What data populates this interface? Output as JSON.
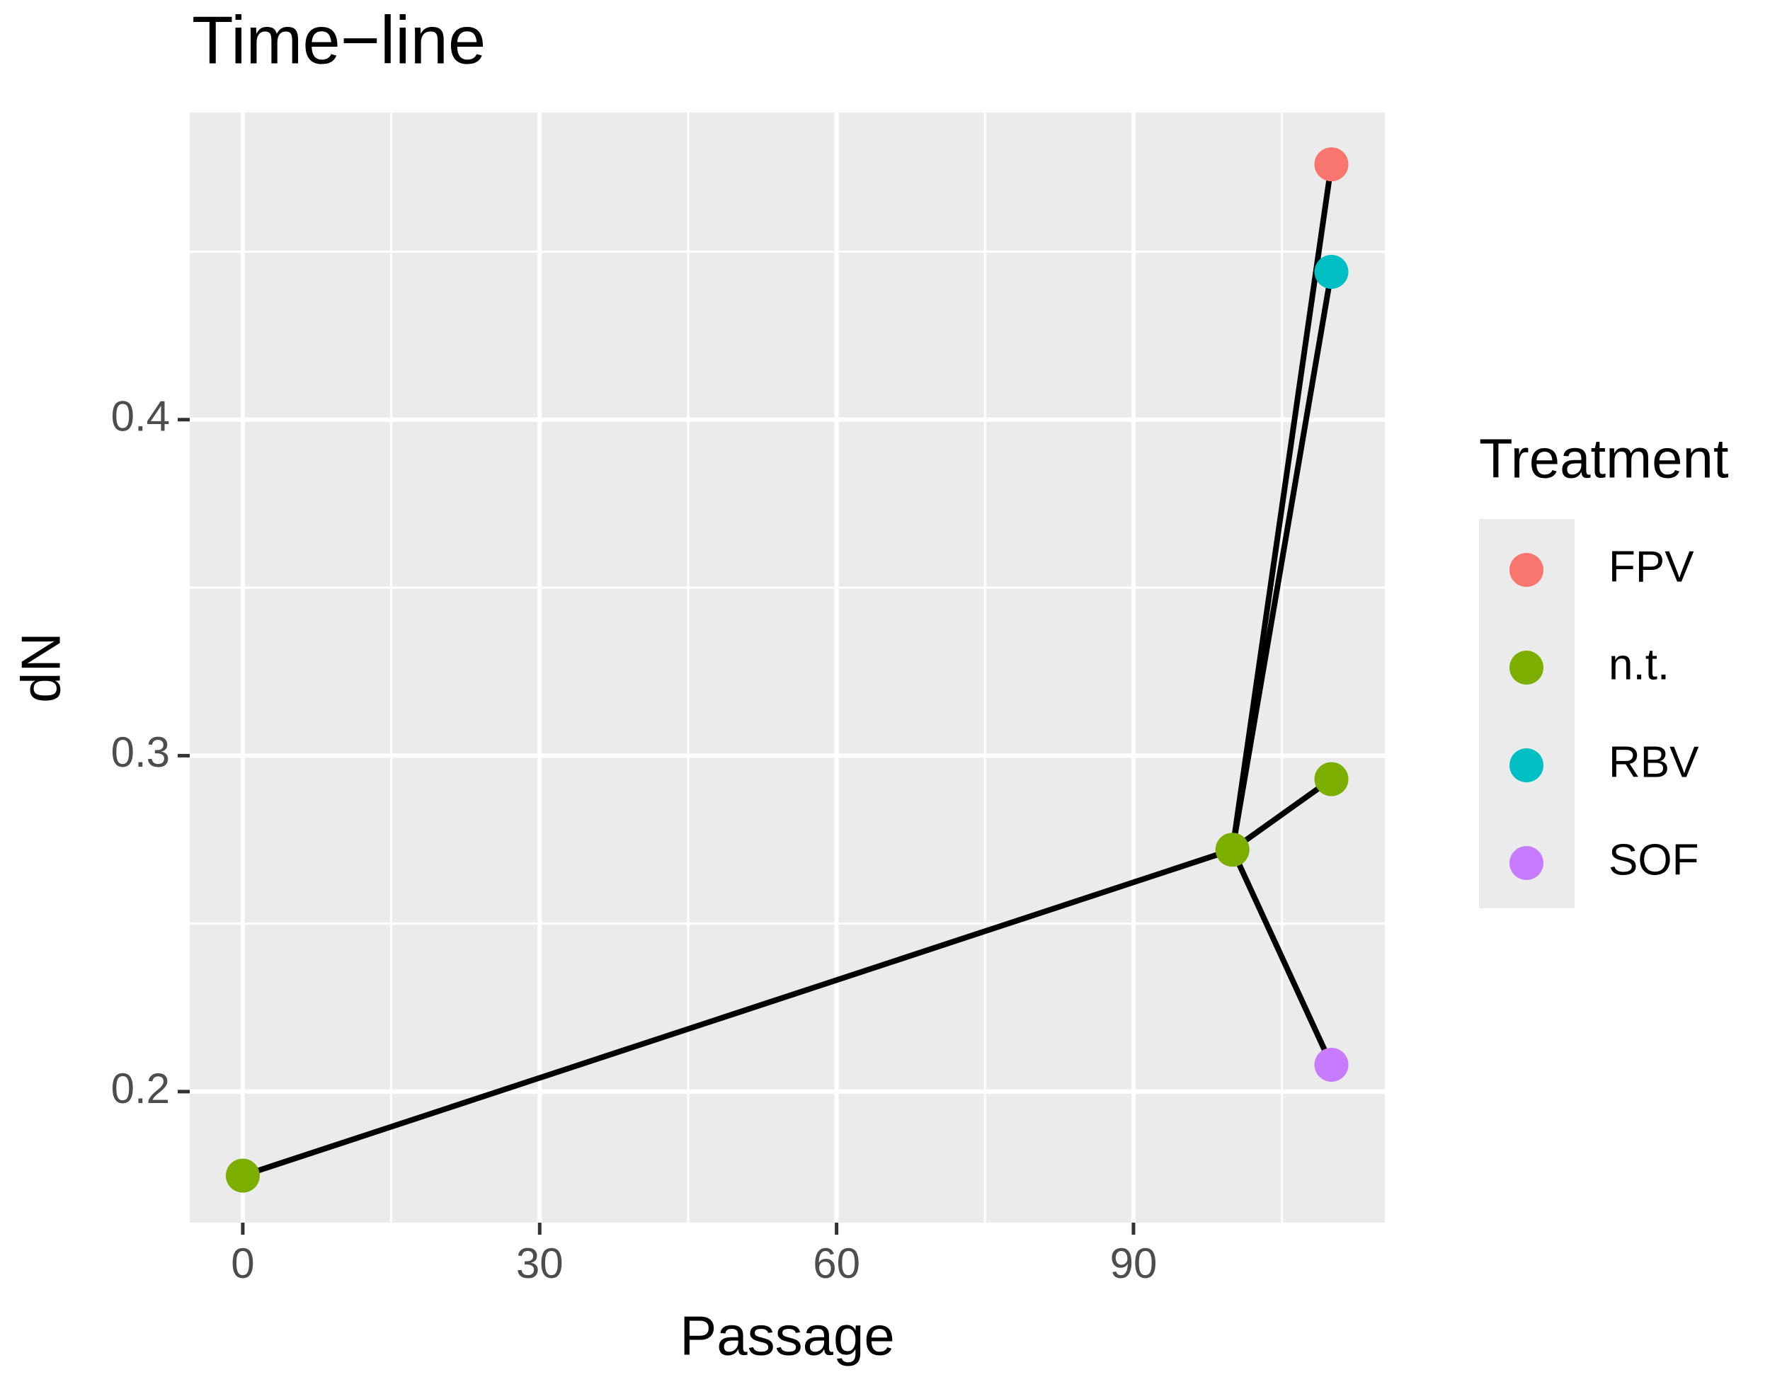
{
  "chart_data": {
    "type": "scatter",
    "title": "Time−line",
    "x_label": "Passage",
    "y_label": "dN",
    "legend_title": "Treatment",
    "legend_position": "right",
    "grid": true,
    "line_color": "#000000",
    "xlim": [
      -5.36,
      115.4
    ],
    "ylim": [
      0.161,
      0.4914
    ],
    "xticks": [
      0,
      30,
      60,
      90
    ],
    "yticks": [
      0.2,
      0.3,
      0.4
    ],
    "minor_xticks": [
      15,
      45,
      75,
      105
    ],
    "minor_yticks": [
      0.25,
      0.35,
      0.45
    ],
    "series": [
      {
        "name": "FPV",
        "color": "#F8766D",
        "x": [
          110
        ],
        "values": [
          0.476
        ]
      },
      {
        "name": "n.t.",
        "color": "#7CAE00",
        "x": [
          0,
          100,
          110
        ],
        "values": [
          0.175,
          0.272,
          0.293
        ]
      },
      {
        "name": "RBV",
        "color": "#00BFC4",
        "x": [
          110
        ],
        "values": [
          0.444
        ]
      },
      {
        "name": "SOF",
        "color": "#C77CFF",
        "x": [
          110
        ],
        "values": [
          0.208
        ]
      }
    ]
  }
}
